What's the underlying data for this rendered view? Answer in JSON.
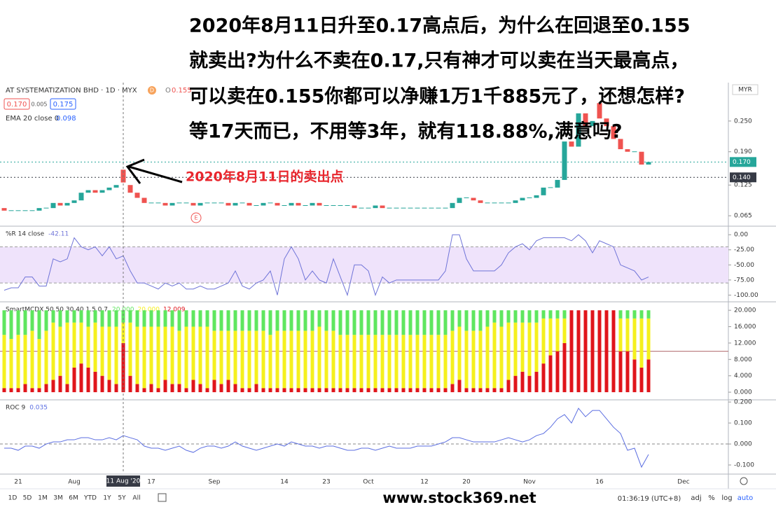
{
  "headline": [
    "2020年8月11日升至0.17高点后，为什么在回退至0.155",
    "就卖出?为什么不卖在0.17,只有神才可以卖在当天最高点，",
    "可以卖在0.155你都可以净赚1万1千885元了，还想怎样?",
    "等17天而已，不用等3年，就有118.88%,满意吗?"
  ],
  "annotation": "2020年8月11日的卖出点",
  "watermark": "www.stock369.net",
  "badge": "D",
  "ohlc": {
    "key": "O",
    "value": "0.155"
  },
  "price_boxes": [
    "0.170",
    "0.005",
    "0.175"
  ],
  "ema_legend": {
    "label": "EMA 20 close 0",
    "value": "0.098"
  },
  "earnings_marker": "E",
  "toolbar": {
    "ranges": [
      "1D",
      "5D",
      "1M",
      "3M",
      "6M",
      "YTD",
      "1Y",
      "5Y",
      "All"
    ],
    "time": "01:36:19 (UTC+8)",
    "options": [
      "adj",
      "%",
      "log",
      "auto"
    ]
  },
  "chart_data": [
    {
      "type": "candlestick",
      "title": "AT SYSTEMATIZATION BHD · 1D · MYX",
      "up_color": "#26a69a",
      "down_color": "#ef5350",
      "currency": "MYR",
      "open": [
        0.08,
        0.075,
        0.075,
        0.075,
        0.075,
        0.075,
        0.08,
        0.08,
        0.09,
        0.085,
        0.09,
        0.095,
        0.11,
        0.115,
        0.11,
        0.115,
        0.12,
        0.155,
        0.125,
        0.11,
        0.1,
        0.09,
        0.09,
        0.09,
        0.085,
        0.09,
        0.09,
        0.09,
        0.085,
        0.09,
        0.09,
        0.09,
        0.09,
        0.085,
        0.09,
        0.09,
        0.085,
        0.085,
        0.09,
        0.09,
        0.085,
        0.085,
        0.09,
        0.085,
        0.085,
        0.09,
        0.085,
        0.085,
        0.085,
        0.085,
        0.085,
        0.08,
        0.08,
        0.08,
        0.085,
        0.08,
        0.08,
        0.08,
        0.08,
        0.08,
        0.08,
        0.08,
        0.08,
        0.08,
        0.08,
        0.09,
        0.1,
        0.1,
        0.095,
        0.09,
        0.09,
        0.09,
        0.09,
        0.09,
        0.095,
        0.1,
        0.1,
        0.105,
        0.12,
        0.12,
        0.135,
        0.21,
        0.2,
        0.265,
        0.24,
        0.285,
        0.255,
        0.24,
        0.215,
        0.195,
        0.19,
        0.19,
        0.165
      ],
      "close": [
        0.075,
        0.075,
        0.075,
        0.075,
        0.075,
        0.08,
        0.08,
        0.09,
        0.085,
        0.09,
        0.095,
        0.11,
        0.115,
        0.11,
        0.115,
        0.12,
        0.125,
        0.13,
        0.11,
        0.1,
        0.09,
        0.09,
        0.09,
        0.085,
        0.09,
        0.09,
        0.09,
        0.085,
        0.09,
        0.09,
        0.09,
        0.09,
        0.085,
        0.09,
        0.09,
        0.085,
        0.085,
        0.09,
        0.09,
        0.085,
        0.085,
        0.09,
        0.085,
        0.085,
        0.09,
        0.085,
        0.085,
        0.085,
        0.085,
        0.085,
        0.08,
        0.08,
        0.08,
        0.085,
        0.08,
        0.08,
        0.08,
        0.08,
        0.08,
        0.08,
        0.08,
        0.08,
        0.08,
        0.08,
        0.09,
        0.1,
        0.1,
        0.095,
        0.09,
        0.09,
        0.09,
        0.09,
        0.09,
        0.095,
        0.1,
        0.1,
        0.105,
        0.12,
        0.12,
        0.135,
        0.21,
        0.2,
        0.265,
        0.24,
        0.25,
        0.255,
        0.24,
        0.215,
        0.195,
        0.19,
        0.19,
        0.165,
        0.17
      ],
      "ylim": [
        0.046,
        0.325
      ],
      "yticks": [
        0.065,
        0.125,
        {
          "value": 0.19,
          "label": "0.190"
        },
        {
          "value": 0.25,
          "label": "0.250"
        }
      ],
      "price_lines": [
        {
          "value": 0.17,
          "label": "0.170",
          "color": "#26a69a"
        },
        {
          "value": 0.14,
          "label": "0.140",
          "color": "#363a45"
        }
      ]
    },
    {
      "type": "line",
      "title": "%R 14 close",
      "value_label": "-42.11",
      "color": "#6f74d8",
      "values": [
        -92,
        -88,
        -88,
        -70,
        -70,
        -85,
        -85,
        -40,
        -45,
        -40,
        -5,
        -20,
        -25,
        -20,
        -35,
        -20,
        -40,
        -35,
        -60,
        -80,
        -80,
        -85,
        -90,
        -80,
        -85,
        -80,
        -90,
        -90,
        -85,
        -90,
        -90,
        -85,
        -80,
        -60,
        -85,
        -90,
        -80,
        -75,
        -60,
        -100,
        -40,
        -20,
        -40,
        -75,
        -60,
        -75,
        -80,
        -40,
        -70,
        -100,
        -50,
        -50,
        -60,
        -100,
        -70,
        -80,
        -75,
        -75,
        -75,
        -75,
        -75,
        -75,
        -75,
        -60,
        0,
        0,
        -40,
        -60,
        -60,
        -60,
        -60,
        -50,
        -30,
        -20,
        -15,
        -25,
        -10,
        -5,
        -5,
        -5,
        -5,
        -10,
        0,
        -10,
        -30,
        -10,
        -15,
        -20,
        -50,
        -55,
        -60,
        -75,
        -70
      ],
      "ylim": [
        -110,
        13
      ],
      "yticks": [
        {
          "value": 0,
          "label": "0.00"
        },
        {
          "value": -25,
          "label": "-25.00"
        },
        {
          "value": -50,
          "label": "-50.00"
        },
        {
          "value": -75,
          "label": "-75.00"
        },
        {
          "value": -100,
          "label": "-100.00"
        }
      ],
      "band": [
        -80,
        -20
      ]
    },
    {
      "type": "stacked-bar",
      "title": "SmartMCDX 50 50 30 40 1.5 0.7",
      "reference_line": 10,
      "series": [
        {
          "color": "#e0151b",
          "value_label": "12.009",
          "values": [
            1,
            1,
            1,
            2,
            1,
            1,
            2,
            3,
            4,
            2,
            6,
            7,
            6,
            5,
            4,
            3,
            2,
            12,
            4,
            2,
            1,
            2,
            1,
            3,
            2,
            2,
            1,
            3,
            2,
            1,
            3,
            2,
            3,
            2,
            1,
            1,
            2,
            1,
            1,
            1,
            1,
            1,
            1,
            1,
            1,
            1,
            1,
            1,
            1,
            1,
            1,
            1,
            1,
            1,
            1,
            1,
            1,
            1,
            1,
            1,
            1,
            1,
            1,
            1,
            2,
            3,
            1,
            1,
            1,
            1,
            1,
            1,
            3,
            4,
            5,
            4,
            5,
            7,
            9,
            10,
            12,
            20,
            20,
            20,
            20,
            20,
            20,
            20,
            10,
            10,
            8,
            6,
            8
          ]
        },
        {
          "color": "#f5f01e",
          "value_label": "20.000",
          "values": [
            13,
            12,
            13,
            12,
            14,
            12,
            13,
            14,
            12,
            15,
            11,
            10,
            10,
            12,
            12,
            13,
            14,
            5,
            13,
            14,
            15,
            14,
            15,
            13,
            14,
            13,
            15,
            13,
            14,
            15,
            12,
            13,
            12,
            13,
            14,
            14,
            13,
            14,
            13,
            14,
            14,
            14,
            14,
            14,
            14,
            15,
            14,
            14,
            13,
            13,
            13,
            13,
            13,
            13,
            13,
            13,
            13,
            13,
            13,
            13,
            13,
            13,
            13,
            13,
            13,
            13,
            14,
            14,
            14,
            15,
            16,
            15,
            14,
            13,
            12,
            13,
            12,
            11,
            9,
            8,
            6,
            0,
            0,
            0,
            0,
            0,
            0,
            0,
            8,
            8,
            10,
            12,
            10
          ]
        },
        {
          "color": "#5fe65f",
          "value_label": "20.000",
          "values": [
            6,
            7,
            6,
            6,
            5,
            7,
            5,
            3,
            4,
            3,
            3,
            3,
            4,
            3,
            4,
            4,
            4,
            3,
            3,
            4,
            4,
            4,
            4,
            4,
            4,
            5,
            4,
            4,
            4,
            4,
            5,
            5,
            5,
            5,
            5,
            5,
            5,
            5,
            6,
            5,
            5,
            5,
            5,
            5,
            5,
            4,
            5,
            5,
            6,
            6,
            6,
            6,
            6,
            6,
            6,
            6,
            6,
            6,
            6,
            6,
            6,
            6,
            6,
            6,
            5,
            4,
            5,
            5,
            5,
            4,
            3,
            4,
            3,
            3,
            3,
            3,
            3,
            2,
            2,
            2,
            2,
            0,
            0,
            0,
            0,
            0,
            0,
            0,
            2,
            2,
            2,
            2,
            2
          ]
        }
      ],
      "ylim": [
        -1.7,
        21.9
      ],
      "yticks": [
        {
          "value": 0,
          "label": "0.000"
        },
        {
          "value": 4,
          "label": "4.000"
        },
        {
          "value": 8,
          "label": "8.000"
        },
        {
          "value": 12,
          "label": "12.000"
        },
        {
          "value": 16,
          "label": "16.000"
        },
        {
          "value": 20,
          "label": "20.000"
        }
      ]
    },
    {
      "type": "line",
      "title": "ROC 9",
      "value_label": "0.035",
      "color": "#5b6ee1",
      "reference_line": 0,
      "values": [
        -0.02,
        -0.02,
        -0.03,
        -0.01,
        -0.01,
        -0.02,
        0,
        0.01,
        0.01,
        0.02,
        0.02,
        0.03,
        0.03,
        0.02,
        0.02,
        0.03,
        0.02,
        0.04,
        0.03,
        0.02,
        -0.01,
        -0.02,
        -0.02,
        -0.03,
        -0.02,
        -0.01,
        -0.03,
        -0.04,
        -0.02,
        -0.01,
        -0.01,
        -0.02,
        -0.01,
        0.01,
        -0.01,
        -0.02,
        -0.03,
        -0.02,
        -0.01,
        0,
        -0.01,
        0.01,
        0,
        -0.01,
        -0.01,
        -0.02,
        -0.01,
        -0.01,
        -0.02,
        -0.03,
        -0.03,
        -0.02,
        -0.02,
        -0.03,
        -0.02,
        -0.01,
        -0.02,
        -0.02,
        -0.02,
        -0.01,
        -0.01,
        -0.01,
        0,
        0.01,
        0.03,
        0.03,
        0.02,
        0.01,
        0.01,
        0.01,
        0.01,
        0.02,
        0.03,
        0.02,
        0.01,
        0.02,
        0.04,
        0.05,
        0.08,
        0.12,
        0.14,
        0.1,
        0.17,
        0.13,
        0.16,
        0.16,
        0.12,
        0.08,
        0.05,
        -0.03,
        -0.02,
        -0.11,
        -0.05
      ],
      "ylim": [
        -0.14,
        0.207
      ],
      "yticks": [
        {
          "value": 0.2,
          "label": "0.200"
        },
        {
          "value": 0.1,
          "label": "0.100"
        },
        {
          "value": 0,
          "label": "0.000"
        },
        {
          "value": -0.1,
          "label": "-0.100"
        }
      ],
      "xticks": [
        {
          "value": 2,
          "label": "21"
        },
        {
          "value": 10,
          "label": "Aug"
        },
        {
          "value": 21,
          "label": "17"
        },
        {
          "value": 30,
          "label": "Sep"
        },
        {
          "value": 40,
          "label": "14"
        },
        {
          "value": 46,
          "label": "23"
        },
        {
          "value": 52,
          "label": "Oct"
        },
        {
          "value": 60,
          "label": "12"
        },
        {
          "value": 66,
          "label": "20"
        },
        {
          "value": 75,
          "label": "Nov"
        },
        {
          "value": 85,
          "label": "16"
        },
        {
          "value": 97,
          "label": "Dec"
        }
      ],
      "crosshair": {
        "value": 17,
        "label": "11 Aug '20"
      }
    }
  ]
}
